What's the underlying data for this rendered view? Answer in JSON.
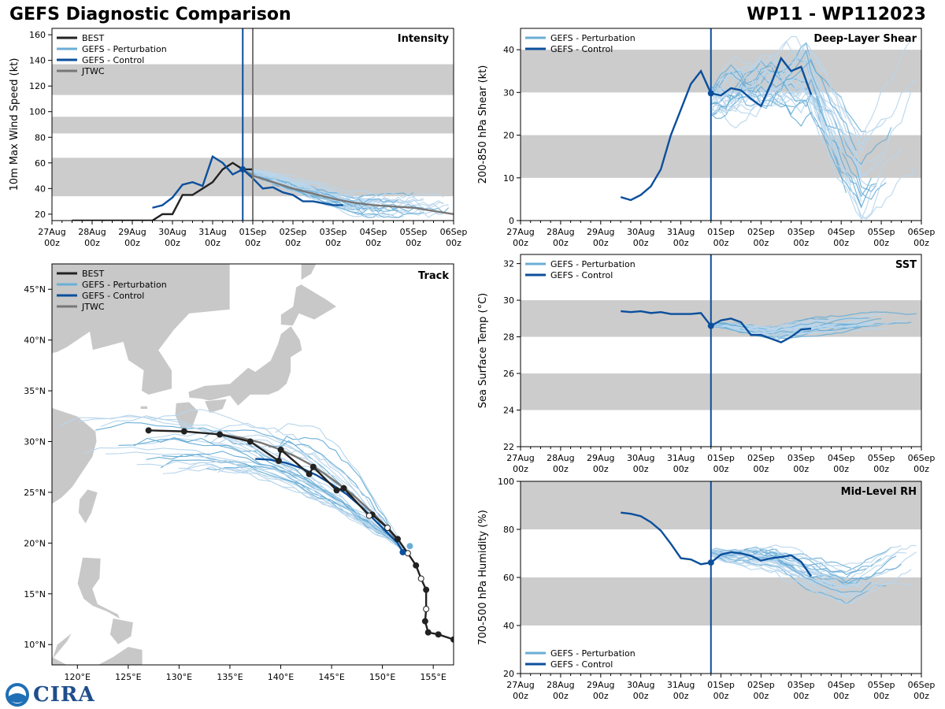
{
  "header": {
    "left_title": "GEFS Diagnostic Comparison",
    "right_title": "WP11 - WP112023"
  },
  "logo": {
    "text": "CIRA"
  },
  "colors": {
    "best": "#222222",
    "perturbation": "#6aaed6",
    "perturbation_light": "#b9d6ec",
    "control": "#0b4f9c",
    "jtwc": "#777777",
    "band": "#cccccc",
    "land": "#c8c8c8"
  },
  "time_axis": {
    "ticks": [
      {
        "day": "27Aug",
        "hour": "00z"
      },
      {
        "day": "28Aug",
        "hour": "00z"
      },
      {
        "day": "29Aug",
        "hour": "00z"
      },
      {
        "day": "30Aug",
        "hour": "00z"
      },
      {
        "day": "31Aug",
        "hour": "00z"
      },
      {
        "day": "01Sep",
        "hour": "00z"
      },
      {
        "day": "02Sep",
        "hour": "00z"
      },
      {
        "day": "03Sep",
        "hour": "00z"
      },
      {
        "day": "04Sep",
        "hour": "00z"
      },
      {
        "day": "05Sep",
        "hour": "00z"
      },
      {
        "day": "06Sep",
        "hour": "00z"
      }
    ],
    "init_day": 4.75,
    "jtwc_line_day": 5.0
  },
  "chart_data": [
    {
      "id": "intensity",
      "type": "line",
      "title": "Intensity",
      "ylabel": "10m Max Wind Speed (kt)",
      "xlabel": "",
      "ylim": [
        15,
        165
      ],
      "yticks": [
        20,
        40,
        60,
        80,
        100,
        120,
        140,
        160
      ],
      "bands": [
        [
          34,
          64
        ],
        [
          83,
          96
        ],
        [
          113,
          137
        ]
      ],
      "legend": [
        "BEST",
        "GEFS - Perturbation",
        "GEFS - Control",
        "JTWC"
      ],
      "series": [
        {
          "name": "BEST",
          "x": [
            0.5,
            1,
            2,
            2.5,
            2.75,
            3,
            3.25,
            3.5,
            3.75,
            4,
            4.25,
            4.5,
            4.75,
            5
          ],
          "values": [
            15,
            15,
            15,
            15,
            20,
            20,
            35,
            35,
            40,
            45,
            55,
            60,
            55,
            55
          ]
        },
        {
          "name": "GEFS - Control",
          "x": [
            2.5,
            2.75,
            3,
            3.25,
            3.5,
            3.75,
            4,
            4.25,
            4.5,
            4.75,
            5,
            5.25,
            5.5,
            5.75,
            6,
            6.25,
            6.5,
            7,
            7.25
          ],
          "values": [
            25,
            27,
            33,
            43,
            45,
            42,
            65,
            60,
            51,
            55,
            48,
            40,
            41,
            37,
            35,
            30,
            30,
            27,
            27
          ]
        },
        {
          "name": "JTWC",
          "x": [
            4.75,
            5,
            5.5,
            6,
            6.5,
            7,
            7.5,
            8,
            8.5,
            9,
            10
          ],
          "values": [
            55,
            50,
            45,
            40,
            36,
            32,
            29,
            27,
            26,
            25,
            20
          ]
        }
      ]
    },
    {
      "id": "shear",
      "type": "line",
      "title": "Deep-Layer Shear",
      "ylabel": "200-850 hPa Shear (kt)",
      "xlabel": "",
      "ylim": [
        0,
        45
      ],
      "yticks": [
        0,
        10,
        20,
        30,
        40
      ],
      "bands": [
        [
          10,
          20
        ],
        [
          30,
          40
        ]
      ],
      "legend": [
        "GEFS - Perturbation",
        "GEFS - Control"
      ],
      "series": [
        {
          "name": "GEFS - Control",
          "x": [
            2.5,
            2.75,
            3,
            3.25,
            3.5,
            3.75,
            4,
            4.25,
            4.5,
            4.75,
            5,
            5.25,
            5.5,
            5.75,
            6,
            6.25,
            6.5,
            6.75,
            7,
            7.25
          ],
          "values": [
            5.5,
            4.8,
            6,
            8,
            12,
            20,
            26,
            32,
            35,
            29.8,
            29.3,
            31,
            30.5,
            28.5,
            26.8,
            32,
            38,
            35,
            36,
            29.5
          ]
        }
      ]
    },
    {
      "id": "track",
      "type": "map",
      "title": "Track",
      "lon_ticks": [
        "120°E",
        "125°E",
        "130°E",
        "135°E",
        "140°E",
        "145°E",
        "150°E",
        "155°E"
      ],
      "lat_ticks": [
        "10°N",
        "15°N",
        "20°N",
        "25°N",
        "30°N",
        "35°N",
        "40°N",
        "45°N"
      ],
      "legend": [
        "BEST",
        "GEFS - Perturbation",
        "GEFS - Control",
        "JTWC"
      ],
      "series": [
        {
          "name": "BEST",
          "lon": [
            157,
            155.5,
            154.5,
            154.2,
            154.3,
            154.3,
            153.8,
            153.3,
            152.5,
            151.5,
            150.5,
            149,
            148.7,
            146.2,
            145.5,
            143.2,
            142.8,
            140,
            139.8,
            137,
            134,
            130.5,
            127
          ],
          "lat": [
            10.5,
            11,
            11.2,
            12.3,
            13.5,
            15.4,
            16.5,
            17.8,
            19,
            20.4,
            21.5,
            22.8,
            22.7,
            25.4,
            25.2,
            27.5,
            26.8,
            29.2,
            28.1,
            30,
            30.7,
            31,
            31.1
          ]
        },
        {
          "name": "GEFS - Control",
          "lon": [
            152,
            151.5,
            150.5,
            149.5,
            148,
            146.5,
            145,
            143.5,
            142,
            140.5,
            139,
            137.5
          ],
          "lat": [
            19.1,
            20,
            21,
            22,
            23.5,
            24.8,
            25.8,
            26.7,
            27.4,
            27.9,
            28.2,
            28.3
          ]
        },
        {
          "name": "JTWC",
          "lon": [
            151.3,
            150.5,
            149,
            147.5,
            146,
            144.5,
            143,
            141.5,
            140,
            138,
            136,
            134
          ],
          "lat": [
            20.4,
            21.5,
            23,
            24.4,
            25.6,
            26.7,
            27.7,
            28.5,
            29.2,
            29.9,
            30.4,
            30.7
          ]
        }
      ]
    },
    {
      "id": "sst",
      "type": "line",
      "title": "SST",
      "ylabel": "Sea Surface Temp (°C)",
      "xlabel": "",
      "ylim": [
        22,
        32.5
      ],
      "yticks": [
        22,
        24,
        26,
        28,
        30,
        32
      ],
      "bands": [
        [
          24,
          26
        ],
        [
          28,
          30
        ]
      ],
      "legend": [
        "GEFS - Perturbation",
        "GEFS - Control"
      ],
      "series": [
        {
          "name": "GEFS - Control",
          "x": [
            2.5,
            2.75,
            3,
            3.25,
            3.5,
            3.75,
            4,
            4.25,
            4.5,
            4.75,
            5,
            5.25,
            5.5,
            5.75,
            6,
            6.25,
            6.5,
            6.75,
            7,
            7.25
          ],
          "values": [
            29.4,
            29.35,
            29.4,
            29.3,
            29.35,
            29.25,
            29.25,
            29.25,
            29.3,
            28.6,
            28.9,
            29.0,
            28.8,
            28.1,
            28.1,
            27.9,
            27.7,
            28.0,
            28.4,
            28.45
          ]
        }
      ]
    },
    {
      "id": "rh",
      "type": "line",
      "title": "Mid-Level RH",
      "ylabel": "700-500 hPa Humidity (%)",
      "xlabel": "",
      "ylim": [
        20,
        100
      ],
      "yticks": [
        20,
        40,
        60,
        80,
        100
      ],
      "bands": [
        [
          40,
          60
        ],
        [
          80,
          100
        ]
      ],
      "legend": [
        "GEFS - Perturbation",
        "GEFS - Control"
      ],
      "series": [
        {
          "name": "GEFS - Control",
          "x": [
            2.5,
            2.75,
            3,
            3.25,
            3.5,
            3.75,
            4,
            4.25,
            4.5,
            4.75,
            5,
            5.25,
            5.5,
            5.75,
            6,
            6.25,
            6.5,
            6.75,
            7,
            7.25
          ],
          "values": [
            87,
            86.5,
            85.5,
            83,
            79.5,
            74,
            68,
            67.5,
            65.5,
            66.2,
            69.5,
            70.5,
            70,
            69,
            67,
            68,
            68.5,
            69.2,
            66.5,
            60.5
          ]
        }
      ]
    }
  ]
}
